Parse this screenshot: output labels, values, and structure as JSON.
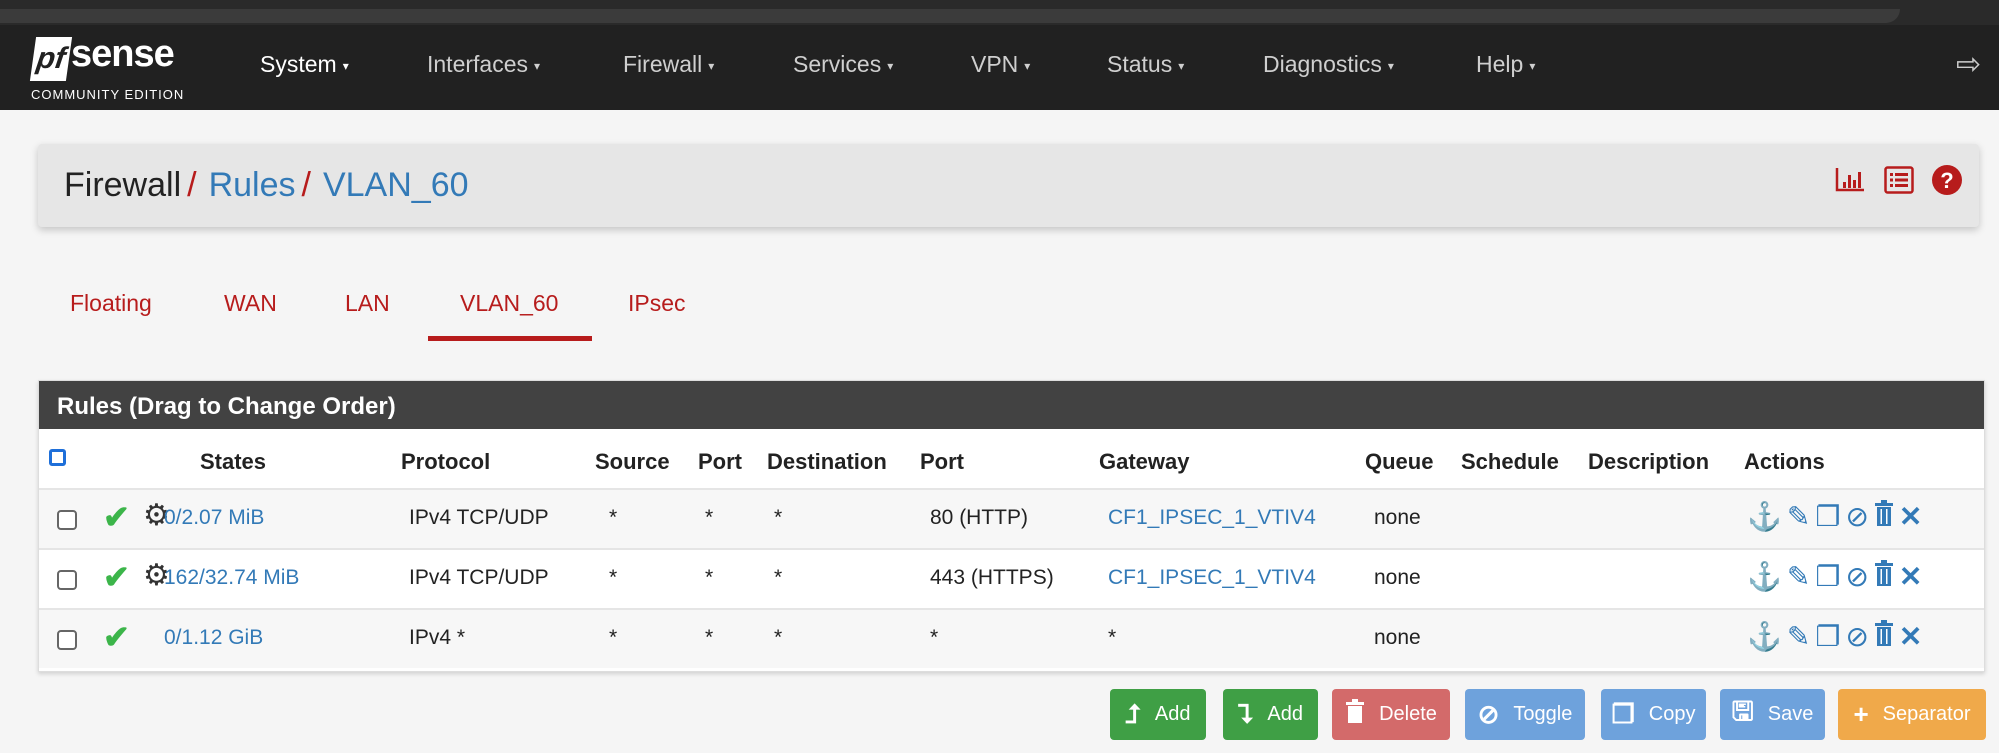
{
  "logo": {
    "brand": "pfsense",
    "edition": "COMMUNITY EDITION"
  },
  "nav": {
    "items": [
      "System",
      "Interfaces",
      "Firewall",
      "Services",
      "VPN",
      "Status",
      "Diagnostics",
      "Help"
    ],
    "caret": "▾",
    "logout_icon": "sign-out-icon"
  },
  "breadcrumb": {
    "root": "Firewall",
    "sep": "/",
    "rules": "Rules",
    "current": "VLAN_60"
  },
  "header_icons": [
    "chart-icon",
    "list-icon",
    "help-icon"
  ],
  "tabs": {
    "items": [
      "Floating",
      "WAN",
      "LAN",
      "VLAN_60",
      "IPsec"
    ],
    "active": "VLAN_60"
  },
  "panel": {
    "title": "Rules (Drag to Change Order)"
  },
  "columns": [
    "States",
    "Protocol",
    "Source",
    "Port",
    "Destination",
    "Port",
    "Gateway",
    "Queue",
    "Schedule",
    "Description",
    "Actions"
  ],
  "rows": [
    {
      "states": "0/2.07 MiB",
      "protocol": "IPv4 TCP/UDP",
      "source": "*",
      "sport": "*",
      "destination": "*",
      "dport": "80 (HTTP)",
      "gateway": "CF1_IPSEC_1_VTIV4",
      "queue": "none",
      "schedule": "",
      "description": "",
      "advanced": true
    },
    {
      "states": "162/32.74 MiB",
      "protocol": "IPv4 TCP/UDP",
      "source": "*",
      "sport": "*",
      "destination": "*",
      "dport": "443 (HTTPS)",
      "gateway": "CF1_IPSEC_1_VTIV4",
      "queue": "none",
      "schedule": "",
      "description": "",
      "advanced": true
    },
    {
      "states": "0/1.12 GiB",
      "protocol": "IPv4 *",
      "source": "*",
      "sport": "*",
      "destination": "*",
      "dport": "*",
      "gateway": "*",
      "queue": "none",
      "schedule": "",
      "description": "",
      "advanced": false
    }
  ],
  "buttons": {
    "add_top": "Add",
    "add_bottom": "Add",
    "delete": "Delete",
    "toggle": "Toggle",
    "copy": "Copy",
    "save": "Save",
    "separator": "Separator"
  },
  "colors": {
    "navbar": "#212121",
    "accent_red": "#b71c1c",
    "link_blue": "#337ab7",
    "pass_green": "#3cb54a",
    "btn_green": "#3f9f45",
    "btn_red": "#d36a6a",
    "btn_blue": "#6ea2dc",
    "btn_orange": "#f0a94a"
  }
}
